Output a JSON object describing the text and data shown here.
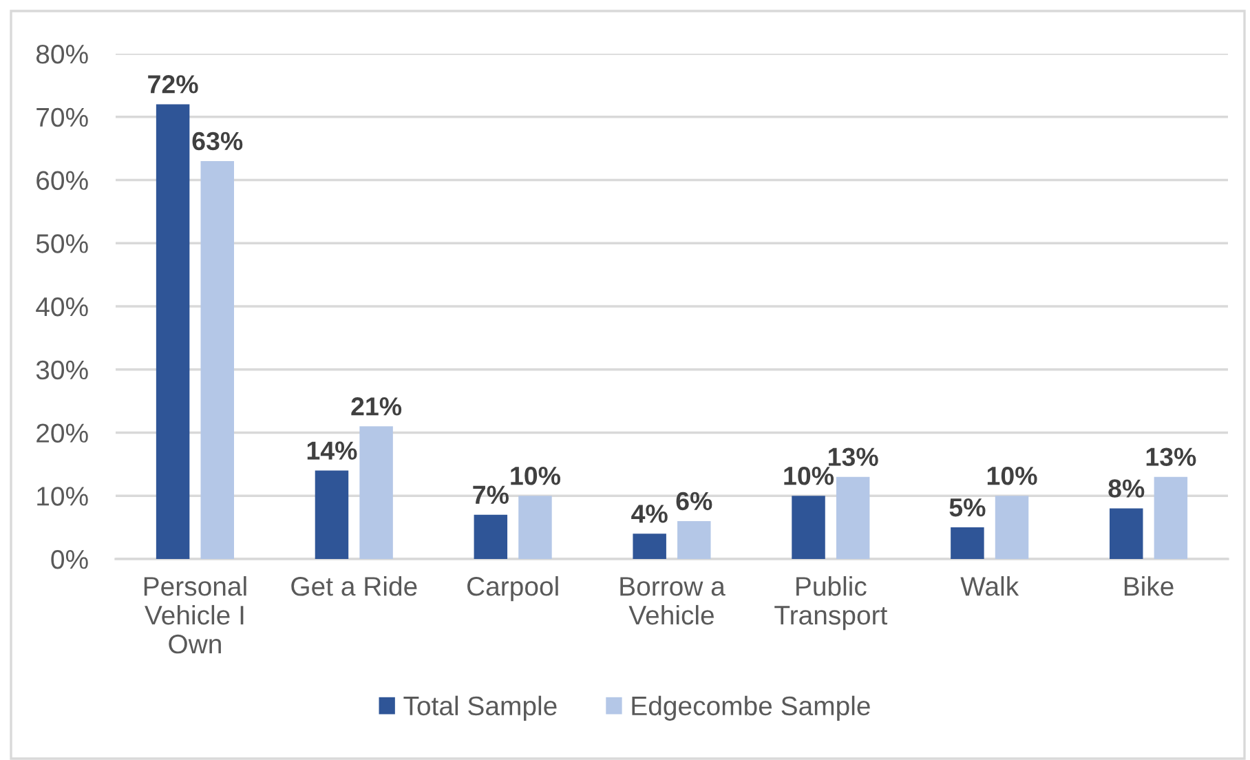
{
  "chart_data": {
    "type": "bar",
    "categories": [
      "Personal\nVehicle I\nOwn",
      "Get a Ride",
      "Carpool",
      "Borrow a\nVehicle",
      "Public\nTransport",
      "Walk",
      "Bike"
    ],
    "series": [
      {
        "name": "Total Sample",
        "color": "#2f5597",
        "values": [
          72,
          14,
          7,
          4,
          10,
          5,
          8
        ],
        "value_labels": [
          "72%",
          "14%",
          "7%",
          "4%",
          "10%",
          "5%",
          "8%"
        ]
      },
      {
        "name": "Edgecombe Sample",
        "color": "#b4c7e7",
        "values": [
          63,
          21,
          10,
          6,
          13,
          10,
          13
        ],
        "value_labels": [
          "63%",
          "21%",
          "10%",
          "6%",
          "13%",
          "10%",
          "13%"
        ]
      }
    ],
    "ylim": [
      0,
      80
    ],
    "yticks": [
      {
        "value": 0,
        "label": "0%"
      },
      {
        "value": 10,
        "label": "10%"
      },
      {
        "value": 20,
        "label": "20%"
      },
      {
        "value": 30,
        "label": "30%"
      },
      {
        "value": 40,
        "label": "40%"
      },
      {
        "value": 50,
        "label": "50%"
      },
      {
        "value": 60,
        "label": "60%"
      },
      {
        "value": 70,
        "label": "70%"
      },
      {
        "value": 80,
        "label": "80%"
      }
    ],
    "grid": "y",
    "legend": "bottom"
  }
}
